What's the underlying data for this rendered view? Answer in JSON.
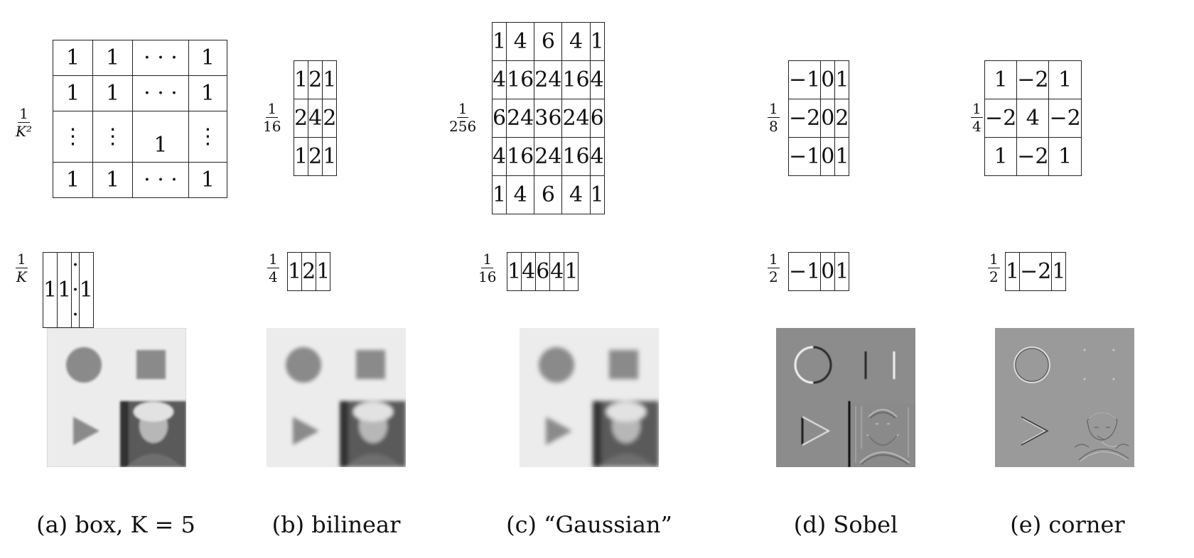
{
  "panels": [
    {
      "id": "a",
      "caption": "(a) box, K = 5",
      "kernel2d_scale": {
        "num": "1",
        "den": "K²"
      },
      "kernel2d": [
        [
          "1",
          "1",
          "· · ·",
          "1"
        ],
        [
          "1",
          "1",
          "· · ·",
          "1"
        ],
        [
          "⋮",
          "⋮",
          "1",
          "⋮"
        ],
        [
          "1",
          "1",
          "· · ·",
          "1"
        ]
      ],
      "kernel1d_scale": {
        "num": "1",
        "den": "K"
      },
      "kernel1d": [
        "1",
        "1",
        "· · ·",
        "1"
      ],
      "image_style": "box-blur"
    },
    {
      "id": "b",
      "caption": "(b) bilinear",
      "kernel2d_scale": {
        "num": "1",
        "den": "16"
      },
      "kernel2d": [
        [
          "1",
          "2",
          "1"
        ],
        [
          "2",
          "4",
          "2"
        ],
        [
          "1",
          "2",
          "1"
        ]
      ],
      "kernel1d_scale": {
        "num": "1",
        "den": "4"
      },
      "kernel1d": [
        "1",
        "2",
        "1"
      ],
      "image_style": "bilinear-blur"
    },
    {
      "id": "c",
      "caption": "(c) “Gaussian”",
      "kernel2d_scale": {
        "num": "1",
        "den": "256"
      },
      "kernel2d": [
        [
          "1",
          "4",
          "6",
          "4",
          "1"
        ],
        [
          "4",
          "16",
          "24",
          "16",
          "4"
        ],
        [
          "6",
          "24",
          "36",
          "24",
          "6"
        ],
        [
          "4",
          "16",
          "24",
          "16",
          "4"
        ],
        [
          "1",
          "4",
          "6",
          "4",
          "1"
        ]
      ],
      "kernel1d_scale": {
        "num": "1",
        "den": "16"
      },
      "kernel1d": [
        "1",
        "4",
        "6",
        "4",
        "1"
      ],
      "image_style": "gaussian-blur"
    },
    {
      "id": "d",
      "caption": "(d) Sobel",
      "kernel2d_scale": {
        "num": "1",
        "den": "8"
      },
      "kernel2d": [
        [
          "−1",
          "0",
          "1"
        ],
        [
          "−2",
          "0",
          "2"
        ],
        [
          "−1",
          "0",
          "1"
        ]
      ],
      "kernel1d_scale": {
        "num": "1",
        "den": "2"
      },
      "kernel1d": [
        "−1",
        "0",
        "1"
      ],
      "image_style": "sobel-edges"
    },
    {
      "id": "e",
      "caption": "(e) corner",
      "kernel2d_scale": {
        "num": "1",
        "den": "4"
      },
      "kernel2d": [
        [
          "1",
          "−2",
          "1"
        ],
        [
          "−2",
          "4",
          "−2"
        ],
        [
          "1",
          "−2",
          "1"
        ]
      ],
      "kernel1d_scale": {
        "num": "1",
        "den": "2"
      },
      "kernel1d": [
        "1",
        "−2",
        "1"
      ],
      "image_style": "corner-response"
    }
  ],
  "colors": {
    "blur_bg": "#ececec",
    "shape": "#8a8a8a",
    "edge_bg": "#8c8c8c",
    "corner_bg": "#9a9a9a"
  }
}
